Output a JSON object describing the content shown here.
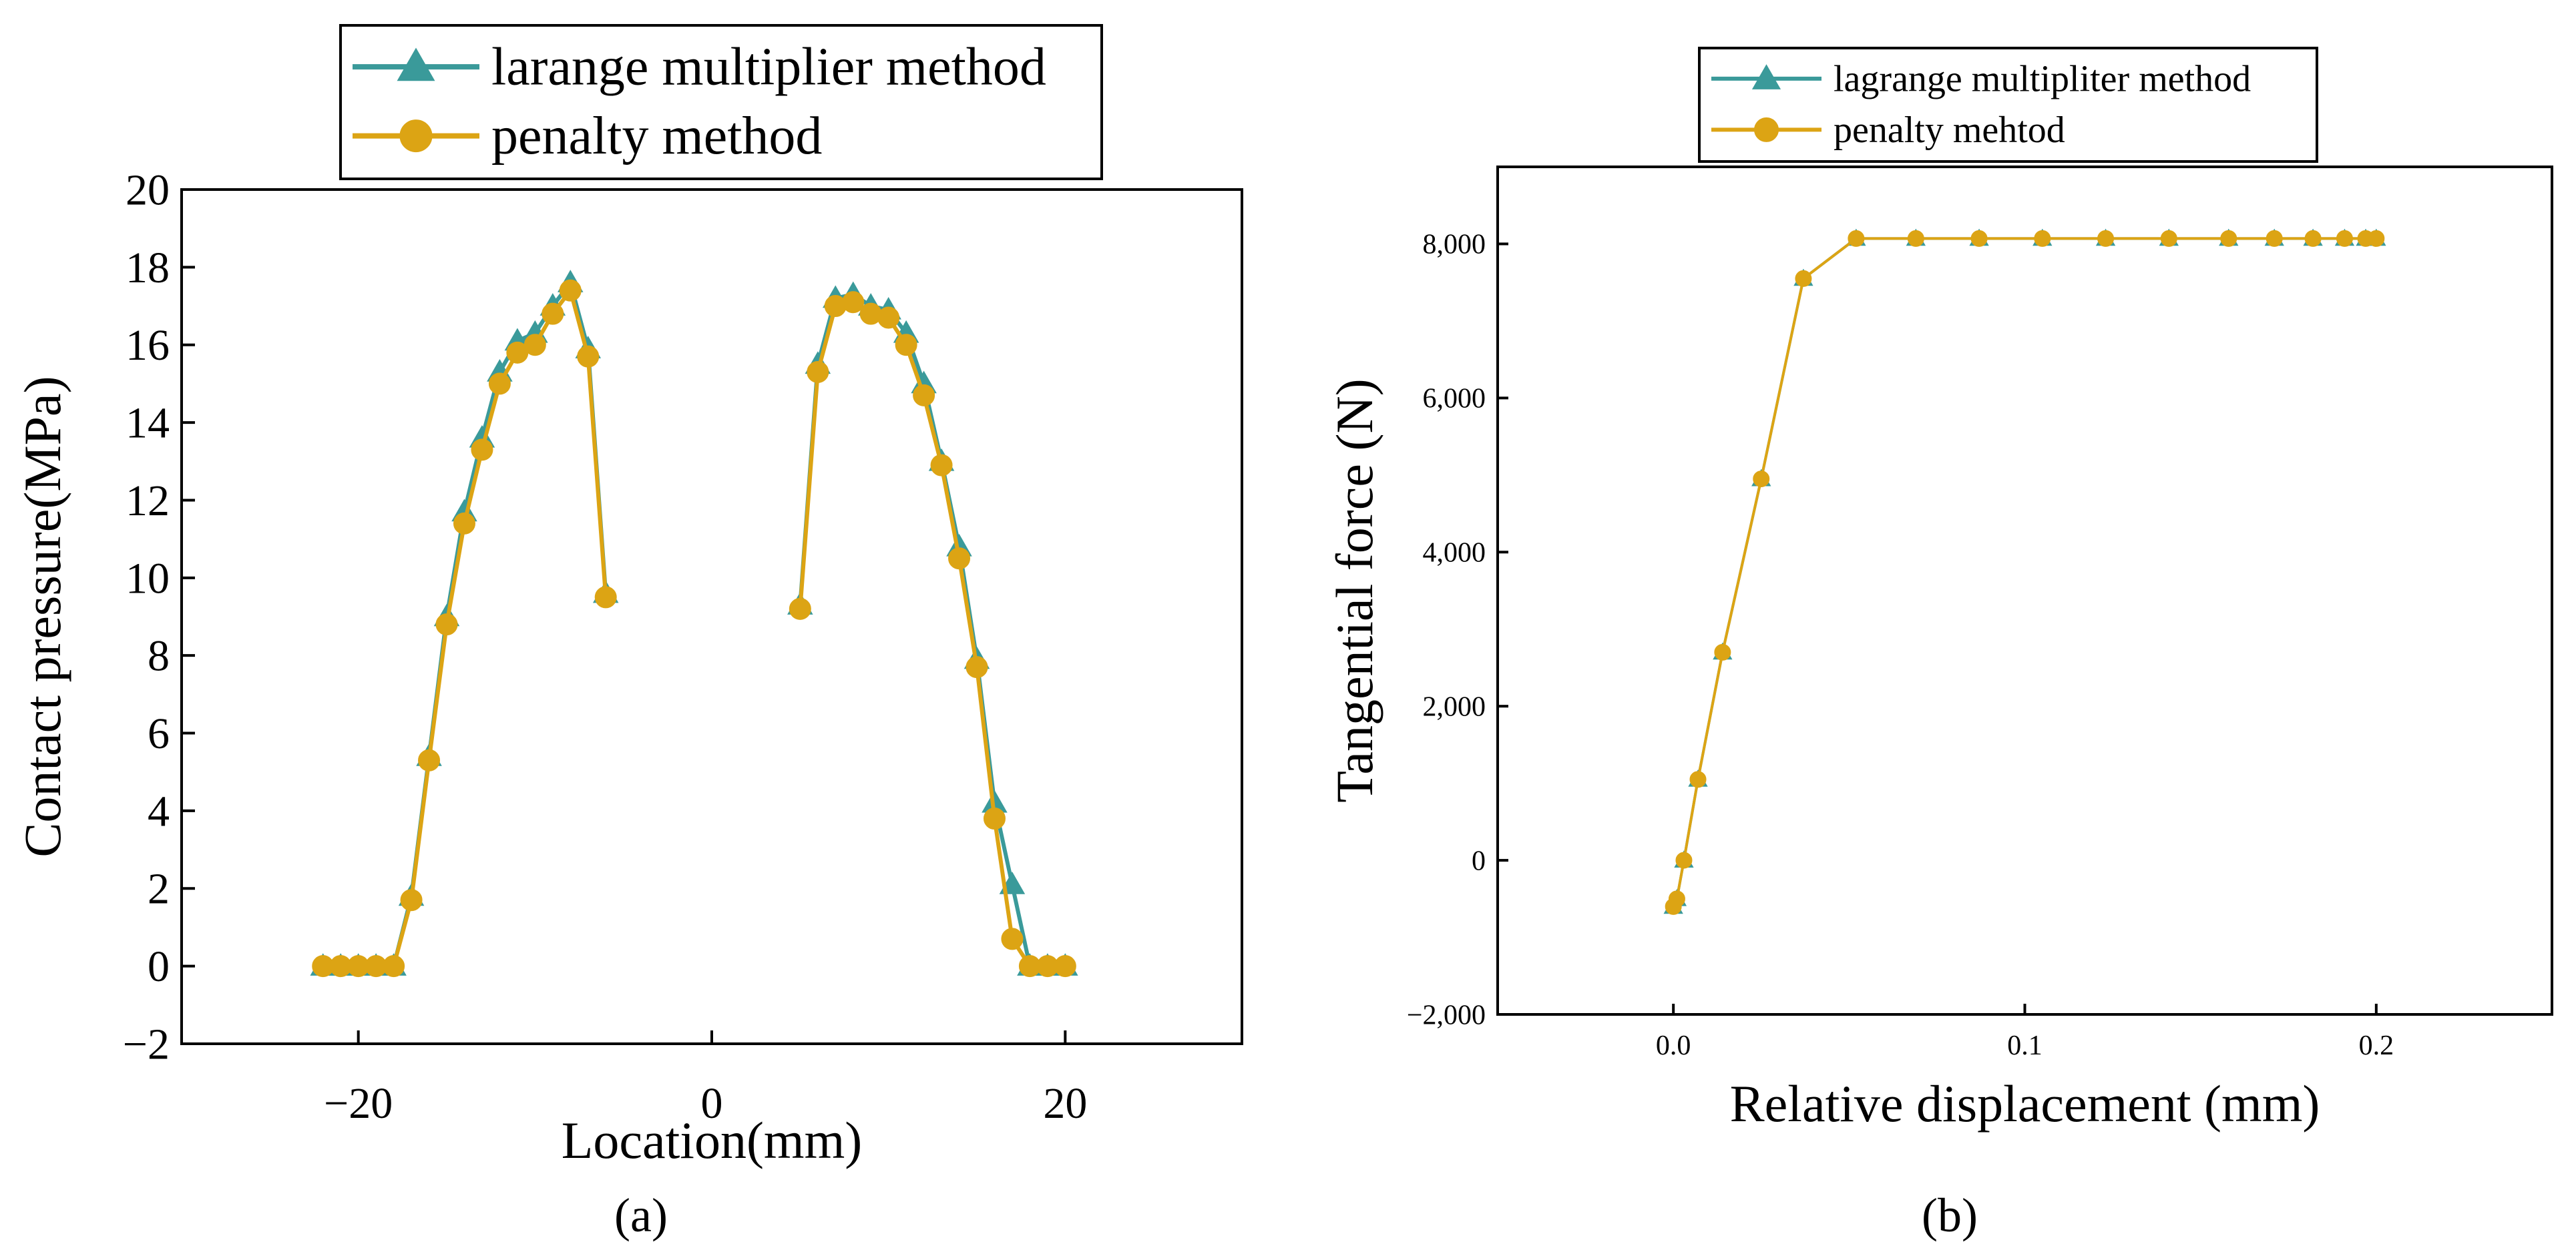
{
  "colors": {
    "lagrange": "#3a9a9a",
    "penalty": "#dca414",
    "axis": "#000000"
  },
  "chart_data": [
    {
      "id": "a",
      "type": "line",
      "caption": "(a)",
      "xlabel": "Location(mm)",
      "ylabel": "Contact pressure(MPa)",
      "xlim": [
        -30,
        30
      ],
      "ylim": [
        -2,
        20
      ],
      "xticks": [
        -20,
        0,
        20
      ],
      "xtick_labels": [
        "−20",
        "0",
        "20"
      ],
      "yticks": [
        -2,
        0,
        2,
        4,
        6,
        8,
        10,
        12,
        14,
        16,
        18,
        20
      ],
      "ytick_labels": [
        "−2",
        "0",
        "2",
        "4",
        "6",
        "8",
        "10",
        "12",
        "14",
        "16",
        "18",
        "20"
      ],
      "legend_position": "top-center",
      "series": [
        {
          "name": "larange multiplier method",
          "marker": "triangle",
          "color": "#3a9a9a",
          "segments": [
            [
              [
                -22,
                0
              ],
              [
                -21,
                0
              ],
              [
                -20,
                0
              ],
              [
                -19,
                0
              ],
              [
                -18,
                0
              ],
              [
                -17,
                1.8
              ],
              [
                -16,
                5.4
              ],
              [
                -15,
                9.0
              ],
              [
                -14,
                11.7
              ],
              [
                -13,
                13.6
              ],
              [
                -12,
                15.3
              ],
              [
                -11,
                16.1
              ],
              [
                -10,
                16.3
              ],
              [
                -9,
                17.0
              ],
              [
                -8,
                17.6
              ],
              [
                -7,
                15.9
              ],
              [
                -6,
                9.6
              ]
            ],
            [
              [
                5,
                9.3
              ],
              [
                6,
                15.5
              ],
              [
                7,
                17.2
              ],
              [
                8,
                17.3
              ],
              [
                9,
                17.0
              ],
              [
                10,
                16.9
              ],
              [
                11,
                16.3
              ],
              [
                12,
                15.0
              ],
              [
                13,
                13.0
              ],
              [
                14,
                10.8
              ],
              [
                15,
                7.9
              ],
              [
                16,
                4.2
              ],
              [
                17,
                2.1
              ],
              [
                18,
                0
              ],
              [
                19,
                0
              ],
              [
                20,
                0
              ]
            ]
          ]
        },
        {
          "name": "penalty method",
          "marker": "circle",
          "color": "#dca414",
          "segments": [
            [
              [
                -22,
                0
              ],
              [
                -21,
                0
              ],
              [
                -20,
                0
              ],
              [
                -19,
                0
              ],
              [
                -18,
                0
              ],
              [
                -17,
                1.7
              ],
              [
                -16,
                5.3
              ],
              [
                -15,
                8.8
              ],
              [
                -14,
                11.4
              ],
              [
                -13,
                13.3
              ],
              [
                -12,
                15.0
              ],
              [
                -11,
                15.8
              ],
              [
                -10,
                16.0
              ],
              [
                -9,
                16.8
              ],
              [
                -8,
                17.4
              ],
              [
                -7,
                15.7
              ],
              [
                -6,
                9.5
              ]
            ],
            [
              [
                5,
                9.2
              ],
              [
                6,
                15.3
              ],
              [
                7,
                17.0
              ],
              [
                8,
                17.1
              ],
              [
                9,
                16.8
              ],
              [
                10,
                16.7
              ],
              [
                11,
                16.0
              ],
              [
                12,
                14.7
              ],
              [
                13,
                12.9
              ],
              [
                14,
                10.5
              ],
              [
                15,
                7.7
              ],
              [
                16,
                3.8
              ],
              [
                17,
                0.7
              ],
              [
                18,
                0
              ],
              [
                19,
                0
              ],
              [
                20,
                0
              ]
            ]
          ]
        }
      ]
    },
    {
      "id": "b",
      "type": "line",
      "caption": "(b)",
      "xlabel": "Relative displacement (mm)",
      "ylabel": "Tangential  force (N)",
      "xlim": [
        -0.05,
        0.25
      ],
      "ylim": [
        -2000,
        9000
      ],
      "xticks": [
        0.0,
        0.1,
        0.2
      ],
      "xtick_labels": [
        "0.0",
        "0.1",
        "0.2"
      ],
      "yticks": [
        -2000,
        0,
        2000,
        4000,
        6000,
        8000
      ],
      "ytick_labels": [
        "−2,000",
        "0",
        "2,000",
        "4,000",
        "6,000",
        "8,000"
      ],
      "legend_position": "top-center",
      "series": [
        {
          "name": "lagrange multipliter method",
          "marker": "triangle",
          "color": "#3a9a9a",
          "segments": [
            [
              [
                0.0,
                -600
              ],
              [
                0.001,
                -500
              ],
              [
                0.003,
                0
              ],
              [
                0.007,
                1050
              ],
              [
                0.014,
                2700
              ],
              [
                0.025,
                4950
              ],
              [
                0.037,
                7550
              ],
              [
                0.052,
                8070
              ],
              [
                0.069,
                8070
              ],
              [
                0.087,
                8070
              ],
              [
                0.105,
                8070
              ],
              [
                0.123,
                8070
              ],
              [
                0.141,
                8070
              ],
              [
                0.158,
                8070
              ],
              [
                0.171,
                8070
              ],
              [
                0.182,
                8070
              ],
              [
                0.191,
                8070
              ],
              [
                0.197,
                8070
              ],
              [
                0.2,
                8070
              ]
            ]
          ]
        },
        {
          "name": "penalty mehtod",
          "marker": "circle",
          "color": "#dca414",
          "segments": [
            [
              [
                0.0,
                -600
              ],
              [
                0.001,
                -500
              ],
              [
                0.003,
                0
              ],
              [
                0.007,
                1050
              ],
              [
                0.014,
                2700
              ],
              [
                0.025,
                4950
              ],
              [
                0.037,
                7550
              ],
              [
                0.052,
                8070
              ],
              [
                0.069,
                8070
              ],
              [
                0.087,
                8070
              ],
              [
                0.105,
                8070
              ],
              [
                0.123,
                8070
              ],
              [
                0.141,
                8070
              ],
              [
                0.158,
                8070
              ],
              [
                0.171,
                8070
              ],
              [
                0.182,
                8070
              ],
              [
                0.191,
                8070
              ],
              [
                0.197,
                8070
              ],
              [
                0.2,
                8070
              ]
            ]
          ]
        }
      ]
    }
  ]
}
